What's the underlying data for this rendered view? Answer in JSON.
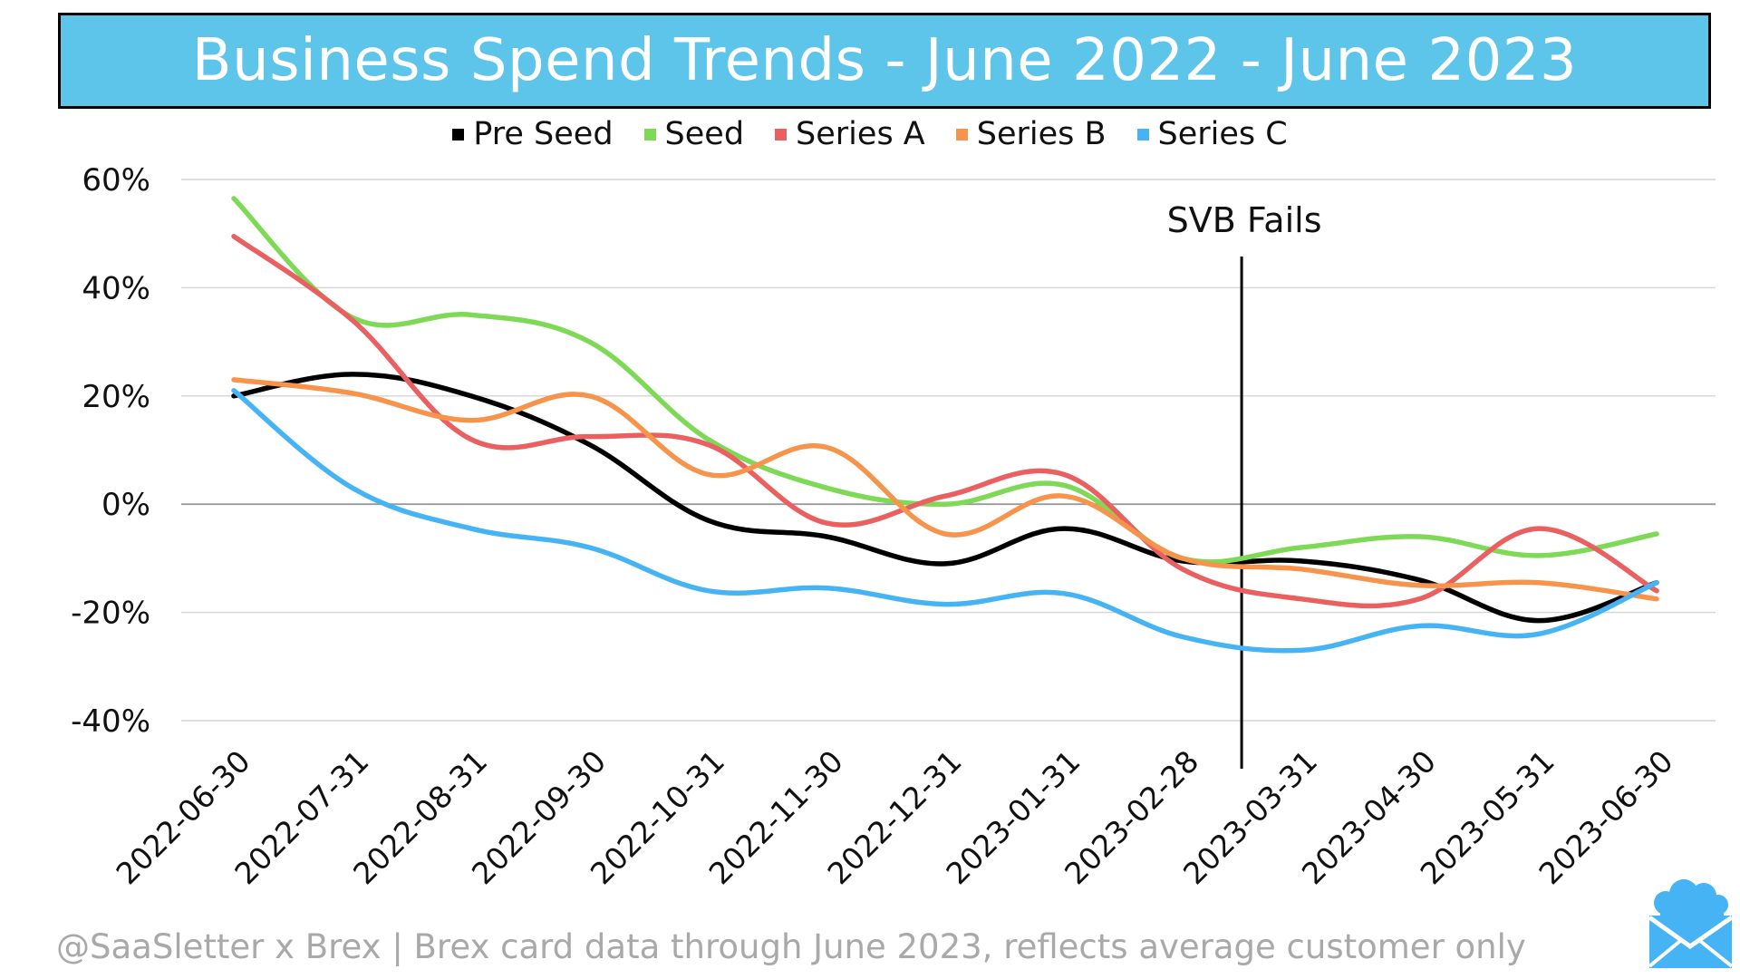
{
  "title": "Business Spend Trends - June 2022 - June 2023",
  "footer": "@SaaSletter x Brex | Brex card data through June 2023, reflects average customer only",
  "logo_icon": "cloud-envelope-icon",
  "chart_data": {
    "type": "line",
    "title": "Business Spend Trends - June 2022 - June 2023",
    "xlabel": "",
    "ylabel": "",
    "ylim": [
      -0.4,
      0.6
    ],
    "yticks": [
      -0.4,
      -0.2,
      0,
      0.2,
      0.4,
      0.6
    ],
    "ytick_labels": [
      "-40%",
      "-20%",
      "0%",
      "20%",
      "40%",
      "60%"
    ],
    "grid": true,
    "legend_position": "top-center",
    "categories": [
      "2022-06-30",
      "2022-07-31",
      "2022-08-31",
      "2022-09-30",
      "2022-10-31",
      "2022-11-30",
      "2022-12-31",
      "2023-01-31",
      "2023-02-28",
      "2023-03-31",
      "2023-04-30",
      "2023-05-31",
      "2023-06-30"
    ],
    "series": [
      {
        "name": "Pre Seed",
        "color": "#000000",
        "values": [
          0.2,
          0.24,
          0.2,
          0.11,
          -0.03,
          -0.06,
          -0.11,
          -0.045,
          -0.105,
          -0.105,
          -0.14,
          -0.215,
          -0.145
        ]
      },
      {
        "name": "Seed",
        "color": "#7ed957",
        "values": [
          0.565,
          0.345,
          0.35,
          0.3,
          0.12,
          0.03,
          0.0,
          0.035,
          -0.1,
          -0.08,
          -0.06,
          -0.095,
          -0.055
        ]
      },
      {
        "name": "Series A",
        "color": "#ea6060",
        "values": [
          0.495,
          0.34,
          0.12,
          0.125,
          0.11,
          -0.035,
          0.015,
          0.055,
          -0.12,
          -0.175,
          -0.175,
          -0.045,
          -0.16
        ]
      },
      {
        "name": "Series B",
        "color": "#f7944c",
        "values": [
          0.23,
          0.205,
          0.155,
          0.2,
          0.055,
          0.105,
          -0.055,
          0.015,
          -0.1,
          -0.12,
          -0.15,
          -0.145,
          -0.175
        ]
      },
      {
        "name": "Series C",
        "color": "#46b4f4",
        "values": [
          0.21,
          0.03,
          -0.045,
          -0.08,
          -0.16,
          -0.155,
          -0.185,
          -0.165,
          -0.245,
          -0.27,
          -0.225,
          -0.24,
          -0.145
        ]
      }
    ],
    "annotation": {
      "label": "SVB Fails",
      "x_between": [
        "2023-02-28",
        "2023-03-31"
      ]
    }
  }
}
